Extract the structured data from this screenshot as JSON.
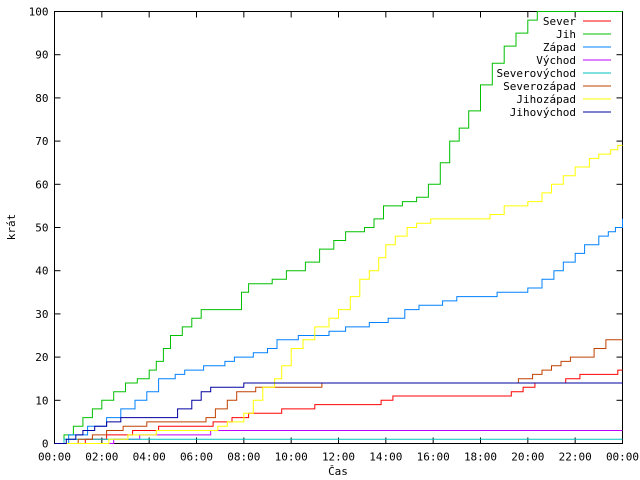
{
  "chart_data": {
    "type": "line",
    "xlabel": "Čas",
    "ylabel": "krát",
    "xlim": [
      0,
      24
    ],
    "ylim": [
      0,
      100
    ],
    "x_ticks": [
      {
        "v": 0,
        "label": "00:00"
      },
      {
        "v": 2,
        "label": "02:00"
      },
      {
        "v": 4,
        "label": "04:00"
      },
      {
        "v": 6,
        "label": "06:00"
      },
      {
        "v": 8,
        "label": "08:00"
      },
      {
        "v": 10,
        "label": "10:00"
      },
      {
        "v": 12,
        "label": "12:00"
      },
      {
        "v": 14,
        "label": "14:00"
      },
      {
        "v": 16,
        "label": "16:00"
      },
      {
        "v": 18,
        "label": "18:00"
      },
      {
        "v": 20,
        "label": "20:00"
      },
      {
        "v": 22,
        "label": "22:00"
      },
      {
        "v": 24,
        "label": "00:00"
      }
    ],
    "y_ticks": [
      {
        "v": 0,
        "label": "0"
      },
      {
        "v": 10,
        "label": "10"
      },
      {
        "v": 20,
        "label": "20"
      },
      {
        "v": 30,
        "label": "30"
      },
      {
        "v": 40,
        "label": "40"
      },
      {
        "v": 50,
        "label": "50"
      },
      {
        "v": 60,
        "label": "60"
      },
      {
        "v": 70,
        "label": "70"
      },
      {
        "v": 80,
        "label": "80"
      },
      {
        "v": 90,
        "label": "90"
      },
      {
        "v": 100,
        "label": "100"
      }
    ],
    "grid": false,
    "legend_position": "top-right",
    "series": [
      {
        "name": "Sever",
        "color": "#ff0000",
        "points": [
          [
            0,
            0
          ],
          [
            1.3,
            1
          ],
          [
            2.2,
            2
          ],
          [
            3.3,
            3
          ],
          [
            4.4,
            4
          ],
          [
            6.7,
            5
          ],
          [
            7.5,
            6
          ],
          [
            8.2,
            7
          ],
          [
            9.6,
            8
          ],
          [
            11,
            9
          ],
          [
            13.8,
            10
          ],
          [
            14.3,
            11
          ],
          [
            19.3,
            12
          ],
          [
            19.8,
            13
          ],
          [
            20.3,
            14
          ],
          [
            21.6,
            15
          ],
          [
            22.2,
            16
          ],
          [
            23.8,
            17
          ],
          [
            24,
            17
          ]
        ]
      },
      {
        "name": "Jih",
        "color": "#00c000",
        "points": [
          [
            0,
            0
          ],
          [
            0.4,
            2
          ],
          [
            0.8,
            4
          ],
          [
            1.2,
            6
          ],
          [
            1.6,
            8
          ],
          [
            2,
            10
          ],
          [
            2.5,
            12
          ],
          [
            3,
            14
          ],
          [
            3.5,
            15
          ],
          [
            4,
            17
          ],
          [
            4.3,
            19
          ],
          [
            4.6,
            22
          ],
          [
            4.9,
            25
          ],
          [
            5.4,
            27
          ],
          [
            5.8,
            29
          ],
          [
            6.2,
            31
          ],
          [
            7.5,
            31
          ],
          [
            7.9,
            35
          ],
          [
            8.2,
            37
          ],
          [
            9.2,
            38
          ],
          [
            9.8,
            40
          ],
          [
            10.6,
            42
          ],
          [
            11.2,
            45
          ],
          [
            11.8,
            47
          ],
          [
            12.3,
            49
          ],
          [
            13.1,
            50
          ],
          [
            13.5,
            52
          ],
          [
            13.9,
            55
          ],
          [
            14.7,
            56
          ],
          [
            15.3,
            57
          ],
          [
            15.8,
            60
          ],
          [
            16.3,
            65
          ],
          [
            16.7,
            70
          ],
          [
            17.1,
            73
          ],
          [
            17.5,
            77
          ],
          [
            18,
            83
          ],
          [
            18.5,
            88
          ],
          [
            19,
            92
          ],
          [
            19.5,
            95
          ],
          [
            20,
            98
          ],
          [
            20.4,
            100
          ],
          [
            24,
            100
          ]
        ]
      },
      {
        "name": "Západ",
        "color": "#0080ff",
        "points": [
          [
            0,
            0
          ],
          [
            0.6,
            2
          ],
          [
            1.4,
            4
          ],
          [
            2.2,
            6
          ],
          [
            2.8,
            8
          ],
          [
            3.4,
            10
          ],
          [
            3.9,
            12
          ],
          [
            4.4,
            15
          ],
          [
            5.1,
            16
          ],
          [
            5.5,
            17
          ],
          [
            6.3,
            18
          ],
          [
            7.2,
            19
          ],
          [
            7.6,
            20
          ],
          [
            8.4,
            21
          ],
          [
            9,
            22
          ],
          [
            9.4,
            24
          ],
          [
            10.3,
            25
          ],
          [
            11.6,
            26
          ],
          [
            12.3,
            27
          ],
          [
            13.3,
            28
          ],
          [
            14.1,
            29
          ],
          [
            14.8,
            31
          ],
          [
            15.4,
            32
          ],
          [
            16.4,
            33
          ],
          [
            17,
            34
          ],
          [
            18.7,
            35
          ],
          [
            20,
            36
          ],
          [
            20.6,
            38
          ],
          [
            21.1,
            40
          ],
          [
            21.5,
            42
          ],
          [
            22,
            44
          ],
          [
            22.4,
            46
          ],
          [
            23,
            48
          ],
          [
            23.4,
            49
          ],
          [
            23.7,
            50
          ],
          [
            24,
            52
          ]
        ]
      },
      {
        "name": "Východ",
        "color": "#c000ff",
        "points": [
          [
            0,
            0
          ],
          [
            2.5,
            1
          ],
          [
            3.6,
            2
          ],
          [
            5.3,
            2
          ],
          [
            6.6,
            3
          ],
          [
            24,
            3
          ]
        ]
      },
      {
        "name": "Severovýchod",
        "color": "#00c0c0",
        "points": [
          [
            0,
            0
          ],
          [
            0.4,
            1
          ],
          [
            24,
            1
          ]
        ]
      },
      {
        "name": "Severozápad",
        "color": "#c04000",
        "points": [
          [
            0,
            0
          ],
          [
            1,
            1
          ],
          [
            1.6,
            2
          ],
          [
            2.2,
            3
          ],
          [
            2.9,
            4
          ],
          [
            3.9,
            5
          ],
          [
            6.4,
            6
          ],
          [
            6.8,
            8
          ],
          [
            7.3,
            10
          ],
          [
            7.7,
            12
          ],
          [
            8.5,
            13
          ],
          [
            10.5,
            13
          ],
          [
            11.3,
            14
          ],
          [
            19.2,
            14
          ],
          [
            19.6,
            15
          ],
          [
            20.2,
            16
          ],
          [
            20.6,
            17
          ],
          [
            21,
            18
          ],
          [
            21.4,
            19
          ],
          [
            21.8,
            20
          ],
          [
            22.8,
            22
          ],
          [
            23.3,
            24
          ],
          [
            24,
            24
          ]
        ]
      },
      {
        "name": "Jihozápad",
        "color": "#ffff00",
        "points": [
          [
            0,
            0
          ],
          [
            2.3,
            1
          ],
          [
            3.1,
            2
          ],
          [
            4.3,
            3
          ],
          [
            6.9,
            4
          ],
          [
            7.3,
            5
          ],
          [
            8,
            7
          ],
          [
            8.4,
            10
          ],
          [
            8.8,
            13
          ],
          [
            9.3,
            15
          ],
          [
            9.6,
            18
          ],
          [
            10,
            22
          ],
          [
            10.5,
            24
          ],
          [
            11,
            27
          ],
          [
            11.6,
            29
          ],
          [
            12,
            31
          ],
          [
            12.5,
            34
          ],
          [
            12.9,
            38
          ],
          [
            13.3,
            40
          ],
          [
            13.7,
            43
          ],
          [
            14,
            46
          ],
          [
            14.4,
            48
          ],
          [
            14.9,
            50
          ],
          [
            15.3,
            51
          ],
          [
            15.9,
            52
          ],
          [
            18.4,
            53
          ],
          [
            19,
            55
          ],
          [
            20,
            56
          ],
          [
            20.6,
            58
          ],
          [
            21,
            60
          ],
          [
            21.5,
            62
          ],
          [
            22,
            64
          ],
          [
            22.6,
            66
          ],
          [
            23,
            67
          ],
          [
            23.5,
            68
          ],
          [
            23.8,
            69
          ],
          [
            24,
            69
          ]
        ]
      },
      {
        "name": "Jihovýchod",
        "color": "#0000a0",
        "points": [
          [
            0,
            0
          ],
          [
            0.5,
            1
          ],
          [
            0.9,
            2
          ],
          [
            1.2,
            3
          ],
          [
            1.7,
            4
          ],
          [
            2.2,
            5
          ],
          [
            2.8,
            6
          ],
          [
            4.8,
            6
          ],
          [
            5.2,
            8
          ],
          [
            5.8,
            10
          ],
          [
            6.2,
            12
          ],
          [
            6.6,
            13
          ],
          [
            7.5,
            13
          ],
          [
            8,
            14
          ],
          [
            24,
            14
          ]
        ]
      }
    ]
  }
}
